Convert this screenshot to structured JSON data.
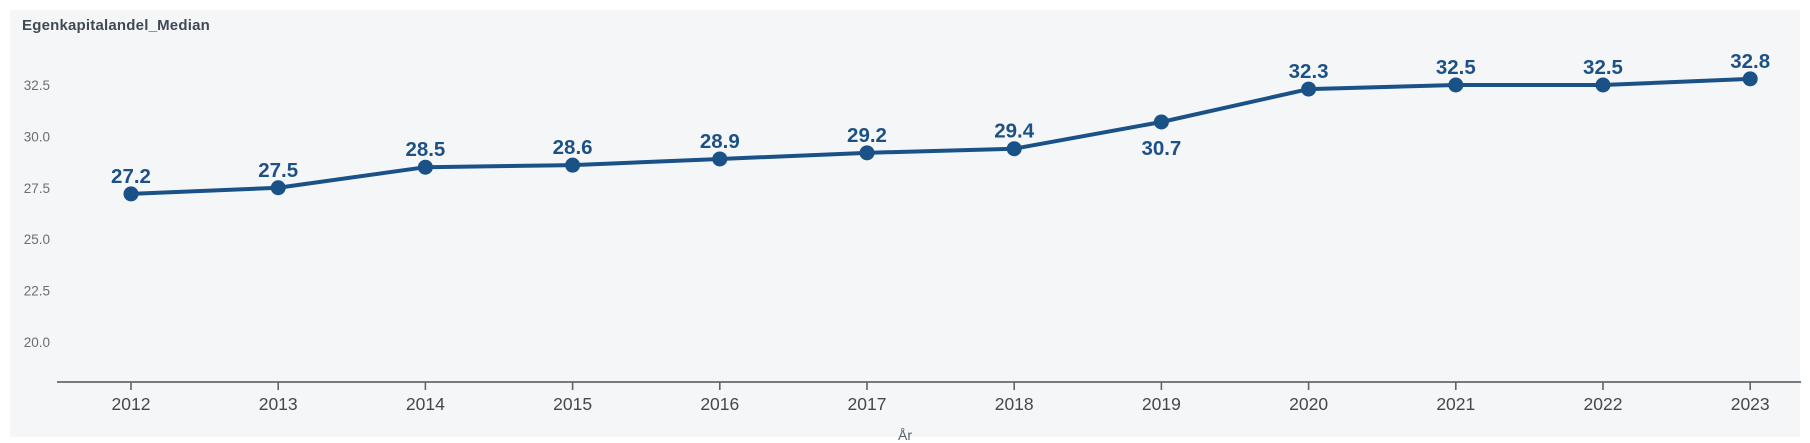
{
  "chart_data": {
    "type": "line",
    "title": "Egenkapitalandel_Median",
    "xlabel": "År",
    "ylabel": "",
    "categories": [
      "2012",
      "2013",
      "2014",
      "2015",
      "2016",
      "2017",
      "2018",
      "2019",
      "2020",
      "2021",
      "2022",
      "2023"
    ],
    "series": [
      {
        "name": "Egenkapitalandel_Median",
        "values": [
          27.2,
          27.5,
          28.5,
          28.6,
          28.9,
          29.2,
          29.4,
          30.7,
          32.3,
          32.5,
          32.5,
          32.8
        ]
      }
    ],
    "data_labels": [
      "27.2",
      "27.5",
      "28.5",
      "28.6",
      "28.9",
      "29.2",
      "29.4",
      "30.7",
      "32.3",
      "32.5",
      "32.5",
      "32.8"
    ],
    "label_below_indices": [
      7
    ],
    "y_tick_labels": [
      "32.5",
      "30.0",
      "27.5",
      "25.0",
      "22.5",
      "20.0"
    ],
    "y_tick_values": [
      32.5,
      30.0,
      27.5,
      25.0,
      22.5,
      20.0
    ],
    "ylim": [
      18.1,
      33.6
    ],
    "grid": "off",
    "legend": "none",
    "colors": {
      "line": "#1a5187",
      "marker": "#1a5187",
      "data_label": "#1d5186",
      "panel_background": "#f5f6f8",
      "page_background": "#ffffff",
      "axis_line": "#767b82",
      "tick_mark": "#5f646b",
      "x_tick_label": "#43484e",
      "y_tick_label": "#696e75",
      "title": "#404a54"
    }
  }
}
